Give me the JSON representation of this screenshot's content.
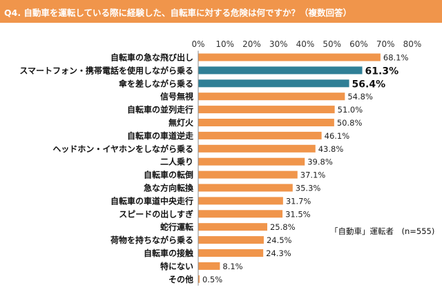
{
  "header": {
    "title": "Q4. 自動車を運転している際に経験した、自転車に対する危険は何ですか？（複数回答）"
  },
  "note": "「自動車」運転者　(n=555)",
  "chart_data": {
    "type": "bar",
    "orientation": "horizontal",
    "categories": [
      "自転車の急な飛び出し",
      "スマートフォン・携帯電話を使用しながら乗る",
      "傘を差しながら乗る",
      "信号無視",
      "自転車の並列走行",
      "無灯火",
      "自転車の車道逆走",
      "ヘッドホン・イヤホンをしながら乗る",
      "二人乗り",
      "自転車の転倒",
      "急な方向転換",
      "自転車の車道中央走行",
      "スピードの出しすぎ",
      "蛇行運転",
      "荷物を持ちながら乗る",
      "自転車の接触",
      "特にない",
      "その他"
    ],
    "values": [
      68.1,
      61.3,
      56.4,
      54.8,
      51.0,
      50.8,
      46.1,
      43.8,
      39.8,
      37.1,
      35.3,
      31.7,
      31.5,
      25.8,
      24.5,
      24.3,
      8.1,
      0.5
    ],
    "value_labels": [
      "68.1%",
      "61.3%",
      "56.4%",
      "54.8%",
      "51.0%",
      "50.8%",
      "46.1%",
      "43.8%",
      "39.8%",
      "37.1%",
      "35.3%",
      "31.7%",
      "31.5%",
      "25.8%",
      "24.5%",
      "24.3%",
      "8.1%",
      "0.5%"
    ],
    "highlighted": [
      1,
      2
    ],
    "xlim": [
      0,
      80
    ],
    "x_ticks": [
      "0%",
      "10%",
      "20%",
      "30%",
      "40%",
      "50%",
      "60%",
      "70%",
      "80%"
    ],
    "tick_position": "top",
    "grid": false,
    "colors": {
      "default": "#f0954b",
      "highlight": "#2f7f96",
      "header": "#f0954b"
    }
  }
}
